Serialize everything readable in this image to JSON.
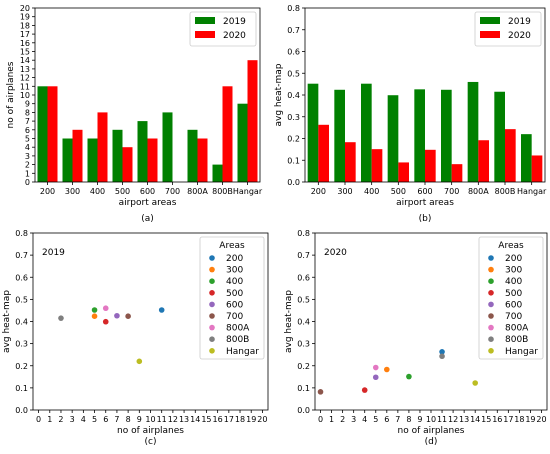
{
  "chart_data": [
    {
      "id": "a",
      "type": "bar",
      "caption": "(a)",
      "xlabel": "airport areas",
      "ylabel": "no of airplanes",
      "ylim": [
        0,
        20
      ],
      "yticks": [
        0,
        1,
        2,
        3,
        4,
        5,
        6,
        7,
        8,
        9,
        10,
        11,
        12,
        13,
        14,
        15,
        16,
        17,
        18,
        19,
        20
      ],
      "categories": [
        "200",
        "300",
        "400",
        "500",
        "600",
        "700",
        "800A",
        "800B",
        "Hangar"
      ],
      "series": [
        {
          "name": "2019",
          "color": "#008000",
          "values": [
            11,
            5,
            5,
            6,
            7,
            8,
            6,
            2,
            9
          ]
        },
        {
          "name": "2020",
          "color": "#ff0000",
          "values": [
            11,
            6,
            8,
            4,
            5,
            0,
            5,
            11,
            14
          ]
        }
      ],
      "legend_position": "top-right"
    },
    {
      "id": "b",
      "type": "bar",
      "caption": "(b)",
      "xlabel": "airport areas",
      "ylabel": "avg heat-map",
      "ylim": [
        0,
        0.8
      ],
      "yticks": [
        0.0,
        0.1,
        0.2,
        0.3,
        0.4,
        0.5,
        0.6,
        0.7,
        0.8
      ],
      "ytick_labels": [
        "0.0",
        "0.1",
        "0.2",
        "0.3",
        "0.4",
        "0.5",
        "0.6",
        "0.7",
        "0.8"
      ],
      "categories": [
        "200",
        "300",
        "400",
        "500",
        "600",
        "700",
        "800A",
        "800B",
        "Hangar"
      ],
      "series": [
        {
          "name": "2019",
          "color": "#008000",
          "values": [
            0.452,
            0.424,
            0.452,
            0.399,
            0.426,
            0.424,
            0.46,
            0.415,
            0.22
          ]
        },
        {
          "name": "2020",
          "color": "#ff0000",
          "values": [
            0.263,
            0.183,
            0.151,
            0.09,
            0.148,
            0.082,
            0.192,
            0.243,
            0.122
          ]
        }
      ],
      "legend_position": "top-right"
    },
    {
      "id": "c",
      "type": "scatter",
      "caption": "(c)",
      "panel_title": "2019",
      "xlabel": "no of airplanes",
      "ylabel": "avg heat-map",
      "xlim": [
        -0.5,
        20.5
      ],
      "ylim": [
        0,
        0.8
      ],
      "xticks": [
        0,
        1,
        2,
        3,
        4,
        5,
        6,
        7,
        8,
        9,
        10,
        11,
        12,
        13,
        14,
        15,
        16,
        17,
        18,
        19,
        20
      ],
      "yticks": [
        0.0,
        0.1,
        0.2,
        0.3,
        0.4,
        0.5,
        0.6,
        0.7,
        0.8
      ],
      "ytick_labels": [
        "0.0",
        "0.1",
        "0.2",
        "0.3",
        "0.4",
        "0.5",
        "0.6",
        "0.7",
        "0.8"
      ],
      "legend_title": "Areas",
      "legend_position": "top-right",
      "points": [
        {
          "name": "200",
          "color": "#1f77b4",
          "x": 11,
          "y": 0.452
        },
        {
          "name": "300",
          "color": "#ff7f0e",
          "x": 5,
          "y": 0.424
        },
        {
          "name": "400",
          "color": "#2ca02c",
          "x": 5,
          "y": 0.452
        },
        {
          "name": "500",
          "color": "#d62728",
          "x": 6,
          "y": 0.399
        },
        {
          "name": "600",
          "color": "#9467bd",
          "x": 7,
          "y": 0.426
        },
        {
          "name": "700",
          "color": "#8c564b",
          "x": 8,
          "y": 0.424
        },
        {
          "name": "800A",
          "color": "#e377c2",
          "x": 6,
          "y": 0.46
        },
        {
          "name": "800B",
          "color": "#7f7f7f",
          "x": 2,
          "y": 0.415
        },
        {
          "name": "Hangar",
          "color": "#bcbd22",
          "x": 9,
          "y": 0.22
        }
      ]
    },
    {
      "id": "d",
      "type": "scatter",
      "caption": "(d)",
      "panel_title": "2020",
      "xlabel": "no of airplanes",
      "ylabel": "avg heat-map",
      "xlim": [
        -0.5,
        20.5
      ],
      "ylim": [
        0,
        0.8
      ],
      "xticks": [
        0,
        1,
        2,
        3,
        4,
        5,
        6,
        7,
        8,
        9,
        10,
        11,
        12,
        13,
        14,
        15,
        16,
        17,
        18,
        19,
        20
      ],
      "yticks": [
        0.0,
        0.1,
        0.2,
        0.3,
        0.4,
        0.5,
        0.6,
        0.7,
        0.8
      ],
      "ytick_labels": [
        "0.0",
        "0.1",
        "0.2",
        "0.3",
        "0.4",
        "0.5",
        "0.6",
        "0.7",
        "0.8"
      ],
      "legend_title": "Areas",
      "legend_position": "top-right",
      "points": [
        {
          "name": "200",
          "color": "#1f77b4",
          "x": 11,
          "y": 0.263
        },
        {
          "name": "300",
          "color": "#ff7f0e",
          "x": 6,
          "y": 0.183
        },
        {
          "name": "400",
          "color": "#2ca02c",
          "x": 8,
          "y": 0.151
        },
        {
          "name": "500",
          "color": "#d62728",
          "x": 4,
          "y": 0.09
        },
        {
          "name": "600",
          "color": "#9467bd",
          "x": 5,
          "y": 0.148
        },
        {
          "name": "700",
          "color": "#8c564b",
          "x": 0,
          "y": 0.082
        },
        {
          "name": "800A",
          "color": "#e377c2",
          "x": 5,
          "y": 0.192
        },
        {
          "name": "800B",
          "color": "#7f7f7f",
          "x": 11,
          "y": 0.243
        },
        {
          "name": "Hangar",
          "color": "#bcbd22",
          "x": 14,
          "y": 0.122
        }
      ]
    }
  ]
}
